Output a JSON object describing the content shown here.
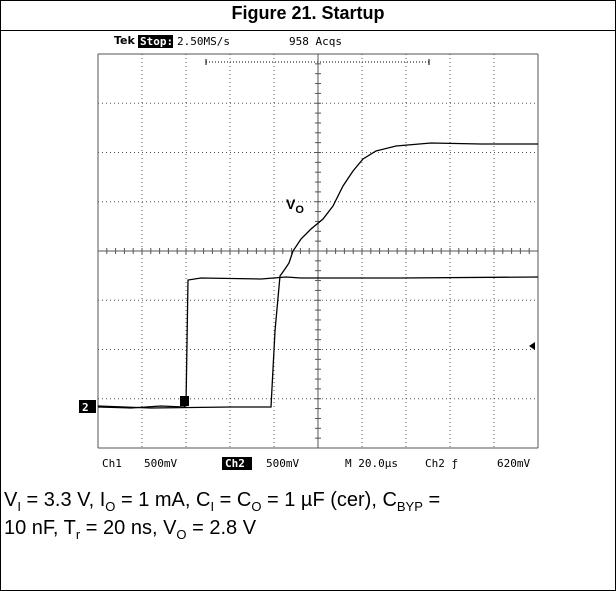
{
  "header": {
    "title": "Figure 21. Startup"
  },
  "scope": {
    "status_left": "Tek",
    "status_mode": "Stop:",
    "sample_rate": "2.50MS/s",
    "acquisitions": "958 Acqs",
    "trace_label": "V",
    "trace_label_sub": "O",
    "ground_marker": "2",
    "footer": {
      "ch1": "Ch1",
      "ch1_scale": "500mV",
      "ch2": "Ch2",
      "ch2_scale": "500mV",
      "timebase": "M 20.0µs",
      "trigger": "Ch2 ƒ",
      "trigger_level": "620mV"
    }
  },
  "caption": {
    "line1": [
      "V",
      "I",
      " = 3.3 V, I",
      "O",
      " = 1 mA, C",
      "I",
      " = C",
      "O",
      " = 1 µF (cer), C",
      "BYP",
      " ="
    ],
    "line2": [
      "10 nF, T",
      "r",
      " = 20 ns, V",
      "O",
      " = 2.8 V"
    ]
  }
}
